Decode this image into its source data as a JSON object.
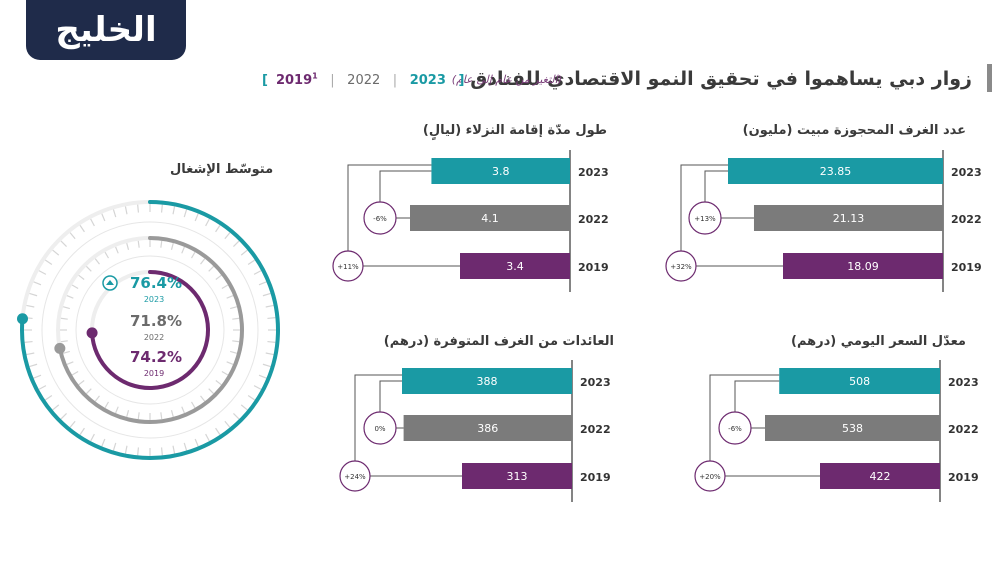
{
  "logo": {
    "text": "الخليج"
  },
  "header": {
    "title": "زوار دبي يساهموا في تحقيق النمو الاقتصادي للفنادق",
    "subtitle": "(التغير من عام إلى عام)",
    "legend": {
      "open": "[",
      "y2019": "2019",
      "sup": "1",
      "sep1": "|",
      "y2022": "2022",
      "sep2": "|",
      "y2023": "2023",
      "close": "]"
    }
  },
  "colors": {
    "teal": "#1a9aa4",
    "gray": "#7b7b7b",
    "purple": "#6d2a6f",
    "lightgray": "#d5d5d5"
  },
  "chart_data": [
    {
      "type": "bar",
      "title": "عدد الغرف المحجوزة مبيت (مليون)",
      "categories": [
        "2023",
        "2022",
        "2019"
      ],
      "values": [
        23.85,
        21.13,
        18.09
      ],
      "value_labels": [
        "23.85",
        "21.13",
        "18.09"
      ],
      "changes": [
        "+13%",
        "+32%"
      ]
    },
    {
      "type": "bar",
      "title": "طول مدّة إقامة النزلاء (ليالٍ)",
      "categories": [
        "2023",
        "2022",
        "2019"
      ],
      "values": [
        3.8,
        4.1,
        3.4
      ],
      "value_labels": [
        "3.8",
        "4.1",
        "3.4"
      ],
      "changes": [
        "-6%",
        "+11%"
      ]
    },
    {
      "type": "bar",
      "title": "معدّل السعر اليومي (درهم)",
      "categories": [
        "2023",
        "2022",
        "2019"
      ],
      "values": [
        508,
        538,
        422
      ],
      "value_labels": [
        "508",
        "538",
        "422"
      ],
      "changes": [
        "-6%",
        "+20%"
      ]
    },
    {
      "type": "bar",
      "title": "العائدات من الغرف المتوفرة (درهم)",
      "categories": [
        "2023",
        "2022",
        "2019"
      ],
      "values": [
        388,
        386,
        313
      ],
      "value_labels": [
        "388",
        "386",
        "313"
      ],
      "changes": [
        "0%",
        "+24%"
      ]
    },
    {
      "type": "gauge",
      "title": "متوسّط الإشغال",
      "series": [
        {
          "name": "2023",
          "value": 76.4,
          "label": "76.4%"
        },
        {
          "name": "2022",
          "value": 71.8,
          "label": "71.8%"
        },
        {
          "name": "2019",
          "value": 74.2,
          "label": "74.2%"
        }
      ]
    }
  ]
}
